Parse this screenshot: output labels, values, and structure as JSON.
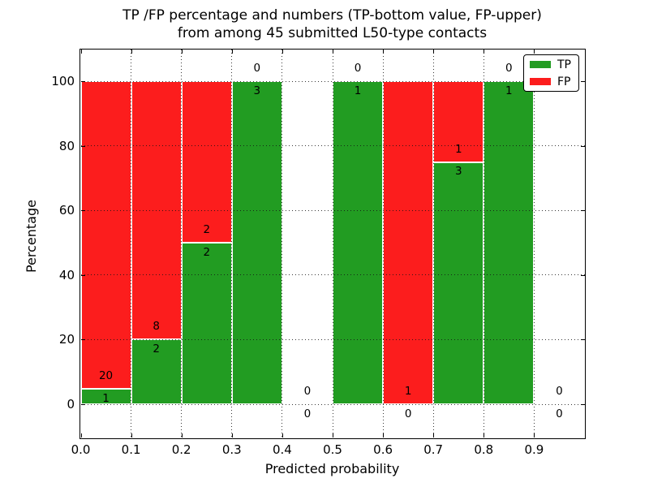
{
  "figure": {
    "background": "#ffffff",
    "text_color": "#000000"
  },
  "chart_data": {
    "type": "bar",
    "stacked": true,
    "unit": "percent",
    "title_line1": "TP /FP percentage and numbers (TP-bottom value, FP-upper)",
    "title_line2": "from among 45 submitted L50-type contacts",
    "xlabel": "Predicted probability",
    "ylabel": "Percentage",
    "xlim": [
      0.0,
      1.0
    ],
    "ylim": [
      -10.3,
      109.8
    ],
    "x_ticks": [
      0.0,
      0.1,
      0.2,
      0.3,
      0.4,
      0.5,
      0.6,
      0.7,
      0.8,
      0.9
    ],
    "x_ticklabels": [
      "0.0",
      "0.1",
      "0.2",
      "0.3",
      "0.4",
      "0.5",
      "0.6",
      "0.7",
      "0.8",
      "0.9"
    ],
    "y_ticks": [
      0,
      20,
      40,
      60,
      80,
      100
    ],
    "y_ticklabels": [
      "0",
      "20",
      "40",
      "60",
      "80",
      "100"
    ],
    "grid": {
      "linestyle": "dotted",
      "color": "#141414",
      "on": true
    },
    "bin_width": 0.1,
    "bins": [
      {
        "x_start": 0.0,
        "x_end": 0.1,
        "tp": 1,
        "fp": 20,
        "tp_pct": 4.76
      },
      {
        "x_start": 0.1,
        "x_end": 0.2,
        "tp": 2,
        "fp": 8,
        "tp_pct": 20
      },
      {
        "x_start": 0.2,
        "x_end": 0.3,
        "tp": 2,
        "fp": 2,
        "tp_pct": 50
      },
      {
        "x_start": 0.3,
        "x_end": 0.4,
        "tp": 3,
        "fp": 0,
        "tp_pct": 100
      },
      {
        "x_start": 0.4,
        "x_end": 0.5,
        "tp": 0,
        "fp": 0,
        "tp_pct": 0
      },
      {
        "x_start": 0.5,
        "x_end": 0.6,
        "tp": 1,
        "fp": 0,
        "tp_pct": 100
      },
      {
        "x_start": 0.6,
        "x_end": 0.7,
        "tp": 0,
        "fp": 1,
        "tp_pct": 0
      },
      {
        "x_start": 0.7,
        "x_end": 0.8,
        "tp": 3,
        "fp": 1,
        "tp_pct": 75
      },
      {
        "x_start": 0.8,
        "x_end": 0.9,
        "tp": 1,
        "fp": 0,
        "tp_pct": 100
      },
      {
        "x_start": 0.9,
        "x_end": 1.0,
        "tp": 0,
        "fp": 0,
        "tp_pct": 0
      }
    ],
    "series": [
      {
        "name": "TP",
        "color": "#229c22"
      },
      {
        "name": "FP",
        "color": "#fc1d1d"
      }
    ],
    "bar_edge_color": "#ffffff",
    "legend": {
      "position": "upper right",
      "entries": [
        "TP",
        "FP"
      ]
    }
  }
}
